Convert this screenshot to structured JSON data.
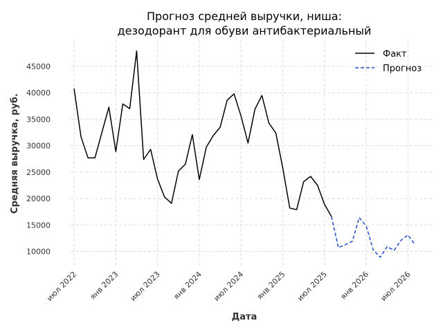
{
  "chart_data": {
    "type": "line",
    "title_line1": "Прогноз средней выручки, ниша:",
    "title_line2": "дезодорант для обуви антибактериальный",
    "xlabel": "Дата",
    "ylabel": "Средняя выручка, руб.",
    "ylim": [
      7000,
      49500
    ],
    "yticks": [
      10000,
      15000,
      20000,
      25000,
      30000,
      35000,
      40000,
      45000
    ],
    "xticks": [
      {
        "label": "июл 2022",
        "date": "2022-07"
      },
      {
        "label": "янв 2023",
        "date": "2023-01"
      },
      {
        "label": "июл 2023",
        "date": "2023-07"
      },
      {
        "label": "янв 2024",
        "date": "2024-01"
      },
      {
        "label": "июл 2024",
        "date": "2024-07"
      },
      {
        "label": "янв 2025",
        "date": "2025-01"
      },
      {
        "label": "июл 2025",
        "date": "2025-07"
      },
      {
        "label": "янв 2026",
        "date": "2026-01"
      },
      {
        "label": "июл 2026",
        "date": "2026-07"
      }
    ],
    "grid": true,
    "legend_position": "top-right",
    "series": [
      {
        "name": "Факт",
        "color": "#000000",
        "style": "solid",
        "points": [
          [
            "2022-07",
            40800
          ],
          [
            "2022-08",
            31700
          ],
          [
            "2022-09",
            27700
          ],
          [
            "2022-10",
            27700
          ],
          [
            "2022-11",
            32500
          ],
          [
            "2022-12",
            37300
          ],
          [
            "2023-01",
            28900
          ],
          [
            "2023-02",
            37900
          ],
          [
            "2023-03",
            37000
          ],
          [
            "2023-04",
            47900
          ],
          [
            "2023-05",
            27400
          ],
          [
            "2023-06",
            29300
          ],
          [
            "2023-07",
            23700
          ],
          [
            "2023-08",
            20300
          ],
          [
            "2023-09",
            19100
          ],
          [
            "2023-10",
            25200
          ],
          [
            "2023-11",
            26500
          ],
          [
            "2023-12",
            32100
          ],
          [
            "2024-01",
            23600
          ],
          [
            "2024-02",
            29700
          ],
          [
            "2024-03",
            31900
          ],
          [
            "2024-04",
            33500
          ],
          [
            "2024-05",
            38600
          ],
          [
            "2024-06",
            39800
          ],
          [
            "2024-07",
            35600
          ],
          [
            "2024-08",
            30500
          ],
          [
            "2024-09",
            36900
          ],
          [
            "2024-10",
            39500
          ],
          [
            "2024-11",
            34300
          ],
          [
            "2024-12",
            32400
          ],
          [
            "2025-01",
            25800
          ],
          [
            "2025-02",
            18200
          ],
          [
            "2025-03",
            17900
          ],
          [
            "2025-04",
            23200
          ],
          [
            "2025-05",
            24200
          ],
          [
            "2025-06",
            22500
          ],
          [
            "2025-07",
            18900
          ],
          [
            "2025-08",
            16600
          ]
        ]
      },
      {
        "name": "Прогноз",
        "color": "#1f4fc7",
        "style": "dashed",
        "points": [
          [
            "2025-08",
            16600
          ],
          [
            "2025-09",
            10700
          ],
          [
            "2025-10",
            11300
          ],
          [
            "2025-11",
            11900
          ],
          [
            "2025-12",
            16400
          ],
          [
            "2026-01",
            14800
          ],
          [
            "2026-02",
            10300
          ],
          [
            "2026-03",
            8900
          ],
          [
            "2026-04",
            10900
          ],
          [
            "2026-05",
            10200
          ],
          [
            "2026-06",
            12100
          ],
          [
            "2026-07",
            13100
          ],
          [
            "2026-08",
            11300
          ]
        ]
      }
    ]
  }
}
